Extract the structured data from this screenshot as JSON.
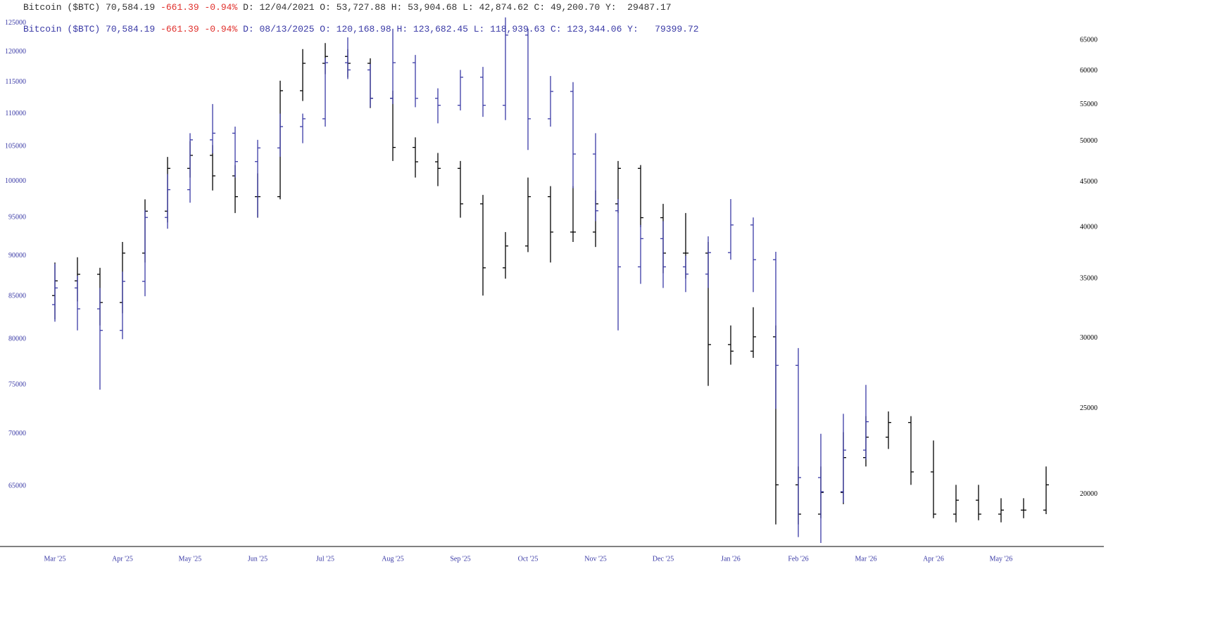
{
  "chart_data": {
    "type": "ohlc",
    "headers": [
      {
        "label": "Bitcoin ($BTC) 70,584.19",
        "change": "-661.39 -0.94%",
        "detail": "D: 12/04/2021 O: 53,727.88 H: 53,904.68 L: 42,874.62 C: 49,200.70 Y:  29487.17",
        "color": "#333333"
      },
      {
        "label": "Bitcoin ($BTC) 70,584.19",
        "change": "-661.39 -0.94%",
        "detail": "D: 08/13/2025 O: 120,168.98 H: 123,682.45 L: 118,939.63 C: 123,344.06 Y:   79399.72",
        "color": "#3a3aa6"
      }
    ],
    "change_color": "#e0302c",
    "categories": [
      "Mar '25",
      "Apr '25",
      "May '25",
      "Jun '25",
      "Jul '25",
      "Aug '25",
      "Sep '25",
      "Oct '25",
      "Nov '25",
      "Dec '25",
      "Jan '26",
      "Feb '26",
      "Mar '26",
      "Apr '26",
      "May '26"
    ],
    "log_scale": true,
    "ylim": [
      59700,
      126600
    ],
    "yticks": [
      65000,
      70000,
      75000,
      80000,
      85000,
      90000,
      95000,
      100000,
      105000,
      110000,
      115000,
      120000,
      125000
    ],
    "y2lim": [
      17470,
      69540
    ],
    "y2ticks": [
      20000,
      25000,
      30000,
      35000,
      40000,
      45000,
      50000,
      55000,
      60000,
      65000
    ],
    "series": [
      {
        "color": "#000000",
        "axis": "y2",
        "open": [
          33500,
          34800,
          35400,
          32900,
          37400,
          41700,
          46600,
          48200,
          45700,
          43300,
          43300,
          57000,
          61200,
          62300,
          61200,
          55900,
          49200,
          47400,
          46600,
          42500,
          36000,
          38100,
          43300,
          39500,
          39500,
          42500,
          46600,
          41000,
          37400,
          37400,
          29500,
          29000,
          30100,
          20500,
          19000,
          20100,
          22000,
          23200,
          24100,
          21200,
          19000,
          19700,
          19000,
          19200,
          19200
        ],
        "high": [
          36500,
          37000,
          36000,
          38500,
          43000,
          48000,
          50000,
          49500,
          47000,
          46000,
          58500,
          63500,
          64500,
          63500,
          62000,
          57000,
          50500,
          48500,
          47500,
          43500,
          39500,
          45500,
          44500,
          44500,
          44000,
          47500,
          47000,
          42500,
          41500,
          38500,
          31000,
          32500,
          31000,
          21500,
          21500,
          23500,
          24500,
          24800,
          24500,
          23000,
          20500,
          20500,
          19800,
          19800,
          21500
        ],
        "low": [
          31500,
          33000,
          31000,
          32000,
          36500,
          40500,
          45500,
          44000,
          41500,
          41000,
          43000,
          55500,
          59500,
          59000,
          54500,
          47500,
          45500,
          44500,
          41000,
          33500,
          35000,
          37500,
          36500,
          38500,
          38000,
          41500,
          40000,
          35500,
          35000,
          26500,
          28000,
          28500,
          18500,
          18500,
          18800,
          19500,
          21500,
          22500,
          20500,
          18800,
          18600,
          18700,
          18600,
          18800,
          19000
        ],
        "close": [
          34800,
          35400,
          32900,
          37400,
          41700,
          46600,
          48200,
          45700,
          43300,
          43300,
          57000,
          61200,
          62300,
          61200,
          55900,
          49200,
          47400,
          46600,
          42500,
          36000,
          38100,
          43300,
          39500,
          39500,
          42500,
          46600,
          41000,
          37400,
          37400,
          29500,
          29000,
          30100,
          20500,
          19000,
          20100,
          22000,
          23200,
          24100,
          21200,
          19000,
          19700,
          19000,
          19200,
          19200,
          20500
        ]
      },
      {
        "color": "#3a3aa6",
        "axis": "y",
        "open": [
          84000,
          86000,
          83500,
          81000,
          86800,
          95000,
          98800,
          106000,
          107000,
          102800,
          104800,
          108000,
          109200,
          118200,
          117000,
          112400,
          118200,
          112400,
          111300,
          115800,
          111300,
          122900,
          109200,
          113500,
          103900,
          95900,
          88600,
          92200,
          88600,
          87700,
          90400,
          94000,
          89500,
          77100,
          65800,
          64500,
          68400
        ],
        "high": [
          89000,
          87500,
          86000,
          88000,
          96000,
          101000,
          107000,
          111500,
          108000,
          106000,
          110000,
          110000,
          119000,
          122500,
          118000,
          124000,
          119500,
          114000,
          117000,
          117500,
          126000,
          124000,
          116000,
          115000,
          107000,
          97500,
          94000,
          94500,
          90000,
          92500,
          97500,
          95000,
          90500,
          79000,
          70000,
          72000,
          75000
        ],
        "low": [
          82000,
          81000,
          74500,
          80000,
          85000,
          93500,
          97000,
          104000,
          100500,
          95000,
          103500,
          105500,
          108000,
          115500,
          111000,
          111500,
          111000,
          108500,
          110500,
          109500,
          109000,
          104500,
          108000,
          99000,
          94500,
          81000,
          86500,
          86000,
          85500,
          86000,
          89500,
          85500,
          72500,
          60500,
          60000,
          63500,
          67500
        ],
        "close": [
          86000,
          83500,
          81000,
          86800,
          95000,
          98800,
          106000,
          107000,
          102800,
          104800,
          108000,
          109200,
          118200,
          117000,
          112400,
          118200,
          112400,
          111300,
          115800,
          111300,
          122900,
          109200,
          113500,
          103900,
          95900,
          88600,
          92200,
          88600,
          87700,
          90400,
          94000,
          89500,
          77100,
          65800,
          64500,
          68400,
          71200
        ]
      }
    ]
  }
}
